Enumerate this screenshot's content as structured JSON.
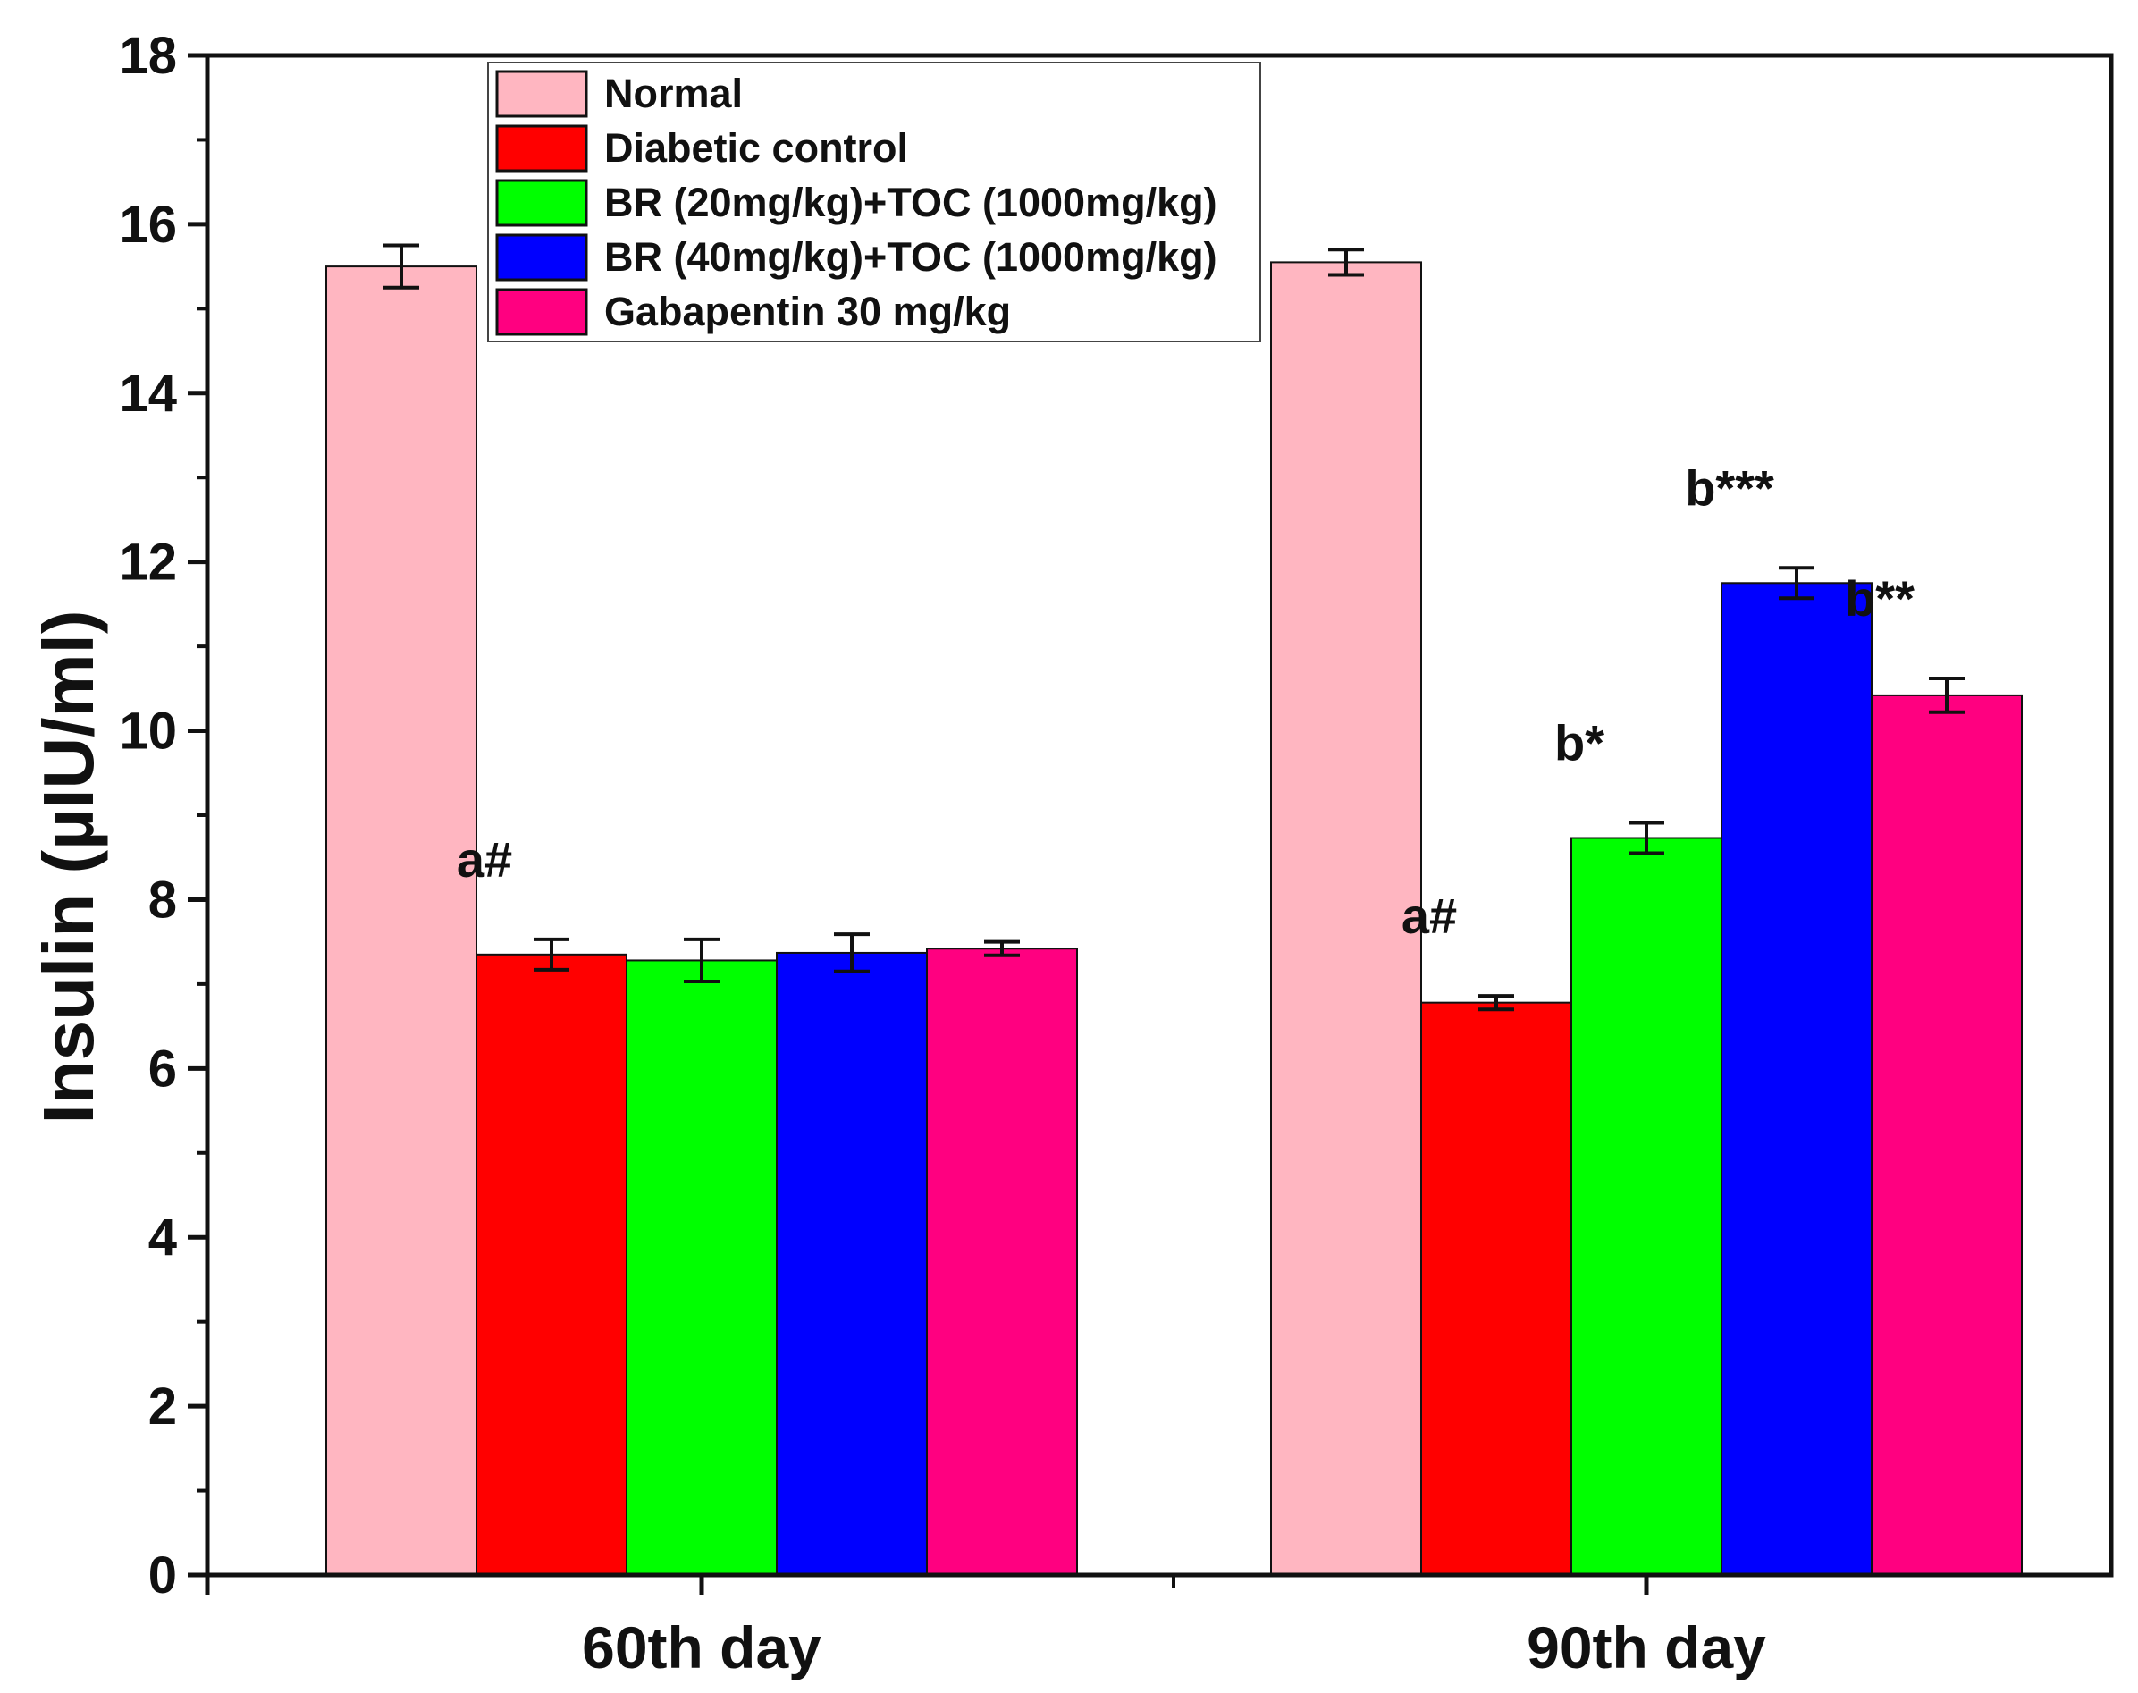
{
  "chart_data": {
    "type": "bar",
    "title": "",
    "xlabel": "",
    "ylabel": "Insulin (µIU/ml)",
    "ylim": [
      0,
      18
    ],
    "yticks": [
      "0",
      "2",
      "4",
      "6",
      "8",
      "10",
      "12",
      "14",
      "16",
      "18"
    ],
    "categories": [
      "60th day",
      "90th day"
    ],
    "legend_position": "top-left",
    "grid": false,
    "series": [
      {
        "name": "Normal",
        "color": "#ffb6c1",
        "values": [
          15.5,
          15.55
        ],
        "errors": [
          0.25,
          0.15
        ],
        "annotations": [
          "",
          ""
        ]
      },
      {
        "name": "Diabetic control",
        "color": "#ff0000",
        "values": [
          7.35,
          6.78
        ],
        "errors": [
          0.18,
          0.08
        ],
        "annotations": [
          "a#",
          "a#"
        ]
      },
      {
        "name": "BR (20mg/kg)+TOC (1000mg/kg)",
        "color": "#00ff00",
        "values": [
          7.28,
          8.73
        ],
        "errors": [
          0.25,
          0.18
        ],
        "annotations": [
          "",
          "b*"
        ]
      },
      {
        "name": "BR (40mg/kg)+TOC (1000mg/kg)",
        "color": "#0000ff",
        "values": [
          7.37,
          11.75
        ],
        "errors": [
          0.22,
          0.18
        ],
        "annotations": [
          "",
          "b***"
        ]
      },
      {
        "name": "Gabapentin 30 mg/kg",
        "color": "#ff0080",
        "values": [
          7.42,
          10.42
        ],
        "errors": [
          0.08,
          0.2
        ],
        "annotations": [
          "",
          "b**"
        ]
      }
    ]
  }
}
